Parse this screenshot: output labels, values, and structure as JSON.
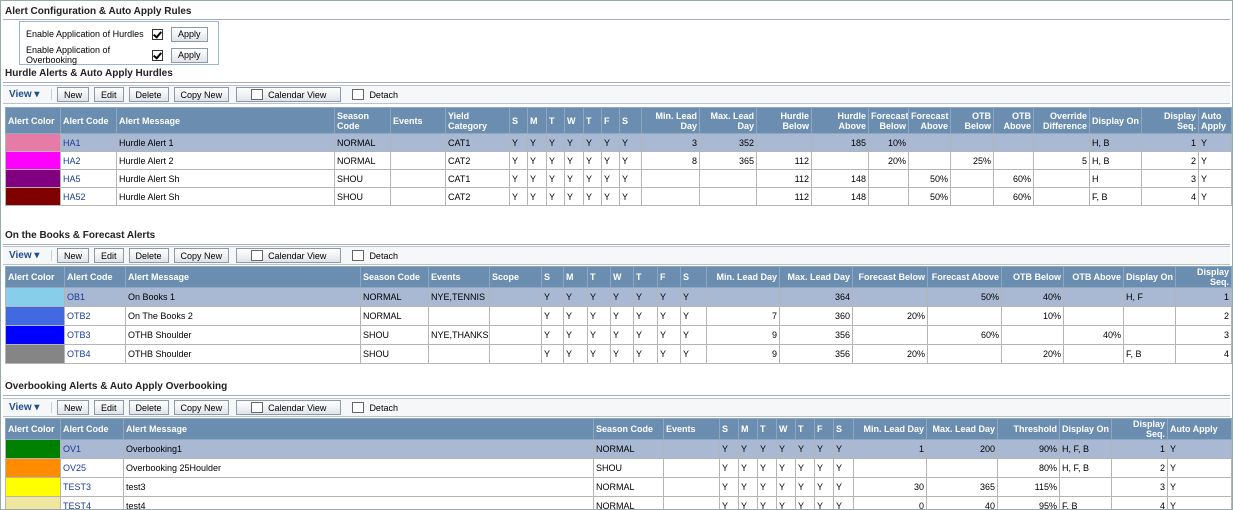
{
  "config": {
    "title": "Alert Configuration & Auto Apply Rules",
    "options": [
      {
        "label": "Enable Application of Hurdles",
        "checked": true,
        "button": "Apply"
      },
      {
        "label": "Enable Application of Overbooking",
        "checked": true,
        "button": "Apply"
      }
    ]
  },
  "toolbar": {
    "view": "View",
    "buttons": [
      "New",
      "Edit",
      "Delete",
      "Copy New",
      "Calendar View"
    ],
    "detach": "Detach"
  },
  "sections": [
    {
      "title": "Hurdle Alerts & Auto Apply Hurdles",
      "columns": [
        "Alert Color",
        "Alert Code",
        "Alert Message",
        "Season Code",
        "Events",
        "Yield Category",
        "S",
        "M",
        "T",
        "W",
        "T",
        "F",
        "S",
        "Min. Lead Day",
        "Max. Lead Day",
        "Hurdle Below",
        "Hurdle Above",
        "Forecast Below",
        "Forecast Above",
        "OTB Below",
        "OTB Above",
        "Override Difference",
        "Display On",
        "Display Seq.",
        "Auto Apply"
      ],
      "rows": [
        {
          "color": "#e57ba6",
          "selected": true,
          "cells": [
            "HA1",
            "Hurdle Alert 1",
            "NORMAL",
            null,
            "CAT1",
            "Y",
            "Y",
            "Y",
            "Y",
            "Y",
            "Y",
            "Y",
            3,
            352,
            null,
            185,
            "10%",
            null,
            null,
            null,
            null,
            "H, B",
            1,
            "Y"
          ]
        },
        {
          "color": "#ff00ff",
          "selected": false,
          "cells": [
            "HA2",
            "Hurdle Alert 2",
            "NORMAL",
            null,
            "CAT2",
            "Y",
            "Y",
            "Y",
            "Y",
            "Y",
            "Y",
            "Y",
            8,
            365,
            112,
            null,
            "20%",
            null,
            "25%",
            null,
            5,
            "H, B",
            2,
            "Y"
          ]
        },
        {
          "color": "#800080",
          "selected": false,
          "cells": [
            "HA5",
            "Hurdle Alert Sh",
            "SHOU",
            null,
            "CAT1",
            "Y",
            "Y",
            "Y",
            "Y",
            "Y",
            "Y",
            "Y",
            null,
            null,
            112,
            148,
            null,
            "50%",
            null,
            "60%",
            null,
            "H",
            3,
            "Y"
          ]
        },
        {
          "color": "#800000",
          "selected": false,
          "cells": [
            "HA52",
            "Hurdle Alert Sh",
            "SHOU",
            null,
            "CAT2",
            "Y",
            "Y",
            "Y",
            "Y",
            "Y",
            "Y",
            "Y",
            null,
            null,
            112,
            148,
            null,
            "50%",
            null,
            "60%",
            null,
            "F, B",
            4,
            "Y"
          ]
        }
      ]
    },
    {
      "title": "On the Books & Forecast Alerts",
      "columns": [
        "Alert Color",
        "Alert Code",
        "Alert Message",
        "Season Code",
        "Events",
        "Scope",
        "S",
        "M",
        "T",
        "W",
        "T",
        "F",
        "S",
        "Min. Lead Day",
        "Max. Lead Day",
        "Forecast Below",
        "Forecast Above",
        "OTB Below",
        "OTB Above",
        "Display On",
        "Display Seq."
      ],
      "rows": [
        {
          "color": "#87ceeb",
          "selected": true,
          "cells": [
            "OB1",
            "On Books 1",
            "NORMAL",
            "NYE,TENNIS",
            null,
            "Y",
            "Y",
            "Y",
            "Y",
            "Y",
            "Y",
            "Y",
            null,
            364,
            null,
            "50%",
            "40%",
            null,
            "H, F",
            1
          ]
        },
        {
          "color": "#4169e1",
          "selected": false,
          "cells": [
            "OTB2",
            "On The Books 2",
            "NORMAL",
            null,
            null,
            "Y",
            "Y",
            "Y",
            "Y",
            "Y",
            "Y",
            "Y",
            7,
            360,
            "20%",
            null,
            "10%",
            null,
            null,
            2
          ]
        },
        {
          "color": "#0000ff",
          "selected": false,
          "cells": [
            "OTB3",
            "OTHB Shoulder",
            "SHOU",
            "NYE,THANKS,...",
            null,
            "Y",
            "Y",
            "Y",
            "Y",
            "Y",
            "Y",
            "Y",
            9,
            356,
            null,
            "60%",
            null,
            "40%",
            null,
            3
          ]
        },
        {
          "color": "#858585",
          "selected": false,
          "cells": [
            "OTB4",
            "OTHB Shoulder",
            "SHOU",
            null,
            null,
            "Y",
            "Y",
            "Y",
            "Y",
            "Y",
            "Y",
            "Y",
            9,
            356,
            "20%",
            null,
            "20%",
            null,
            "F, B",
            4
          ]
        }
      ]
    },
    {
      "title": "Overbooking Alerts & Auto Apply Overbooking",
      "columns": [
        "Alert Color",
        "Alert Code",
        "Alert Message",
        "Season Code",
        "Events",
        "S",
        "M",
        "T",
        "W",
        "T",
        "F",
        "S",
        "Min. Lead Day",
        "Max. Lead Day",
        "Threshold",
        "Display On",
        "Display Seq.",
        "Auto Apply"
      ],
      "rows": [
        {
          "color": "#008000",
          "selected": true,
          "cells": [
            "OV1",
            "Overbooking1",
            "NORMAL",
            null,
            "Y",
            "Y",
            "Y",
            "Y",
            "Y",
            "Y",
            "Y",
            1,
            200,
            "90%",
            "H, F, B",
            1,
            "Y"
          ]
        },
        {
          "color": "#ff8c00",
          "selected": false,
          "cells": [
            "OV25",
            "Overbooking 25Houlder",
            "SHOU",
            null,
            "Y",
            "Y",
            "Y",
            "Y",
            "Y",
            "Y",
            "Y",
            null,
            null,
            "80%",
            "H, F, B",
            2,
            "Y"
          ]
        },
        {
          "color": "#ffff00",
          "selected": false,
          "cells": [
            "TEST3",
            "test3",
            "NORMAL",
            null,
            "Y",
            "Y",
            "Y",
            "Y",
            "Y",
            "Y",
            "Y",
            30,
            365,
            "115%",
            null,
            3,
            "Y"
          ]
        },
        {
          "color": "#efe6a0",
          "selected": false,
          "cells": [
            "TEST4",
            "test4",
            "NORMAL",
            null,
            "Y",
            "Y",
            "Y",
            "Y",
            "Y",
            "Y",
            "Y",
            0,
            40,
            "95%",
            "F, B",
            4,
            "Y"
          ]
        }
      ]
    }
  ]
}
